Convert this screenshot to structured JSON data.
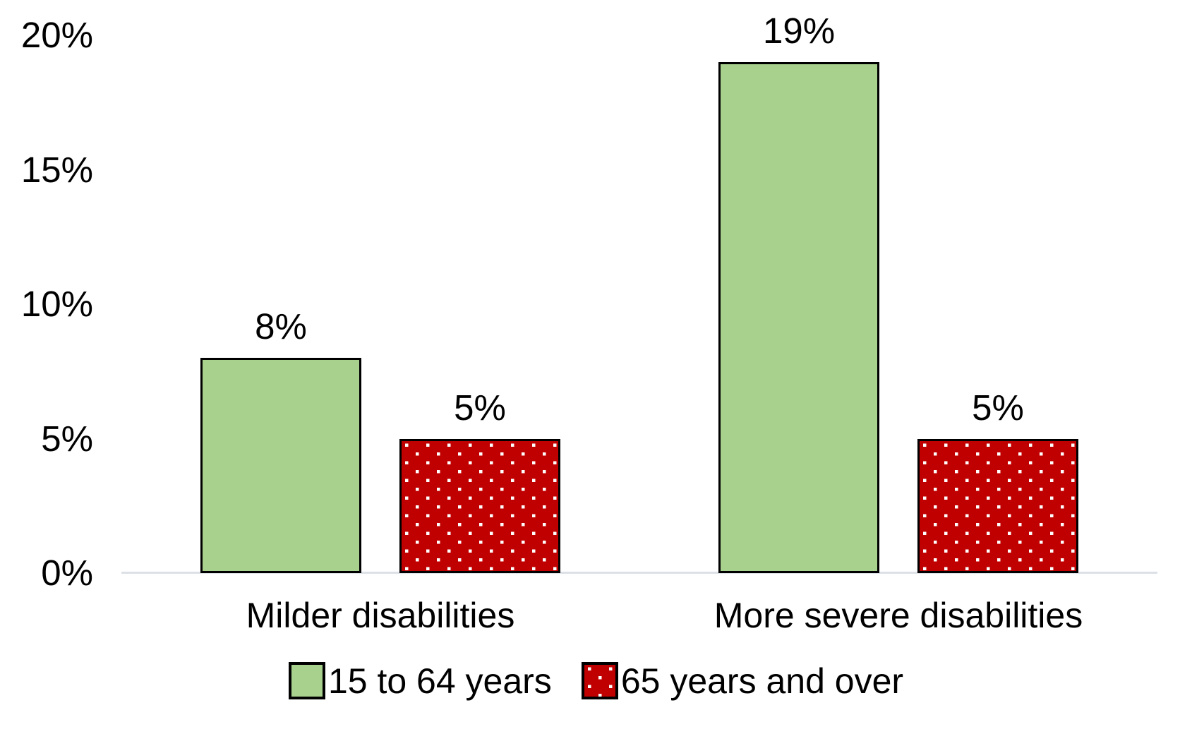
{
  "chart_data": {
    "type": "bar",
    "categories": [
      "Milder disabilities",
      "More severe disabilities"
    ],
    "series": [
      {
        "name": "15 to 64 years",
        "values": [
          8,
          19
        ],
        "labels": [
          "8%",
          "19%"
        ],
        "fill": "#A9D18E",
        "pattern": "solid",
        "border_color": "#000000"
      },
      {
        "name": "65 years and over",
        "values": [
          5,
          5
        ],
        "labels": [
          "5%",
          "5%"
        ],
        "fill": "#C00000",
        "pattern": "white-dots",
        "dot_color": "#FFFFFF",
        "border_color": "#000000"
      }
    ],
    "yticks": [
      {
        "v": 0,
        "label": "0%"
      },
      {
        "v": 5,
        "label": "5%"
      },
      {
        "v": 10,
        "label": "10%"
      },
      {
        "v": 15,
        "label": "15%"
      },
      {
        "v": 20,
        "label": "20%"
      }
    ],
    "ylim": [
      0,
      20
    ],
    "grid": false,
    "legend_position": "bottom",
    "axis_line_color": "#DDE1E7",
    "text_color": "#000000",
    "background": "#FFFFFF"
  }
}
